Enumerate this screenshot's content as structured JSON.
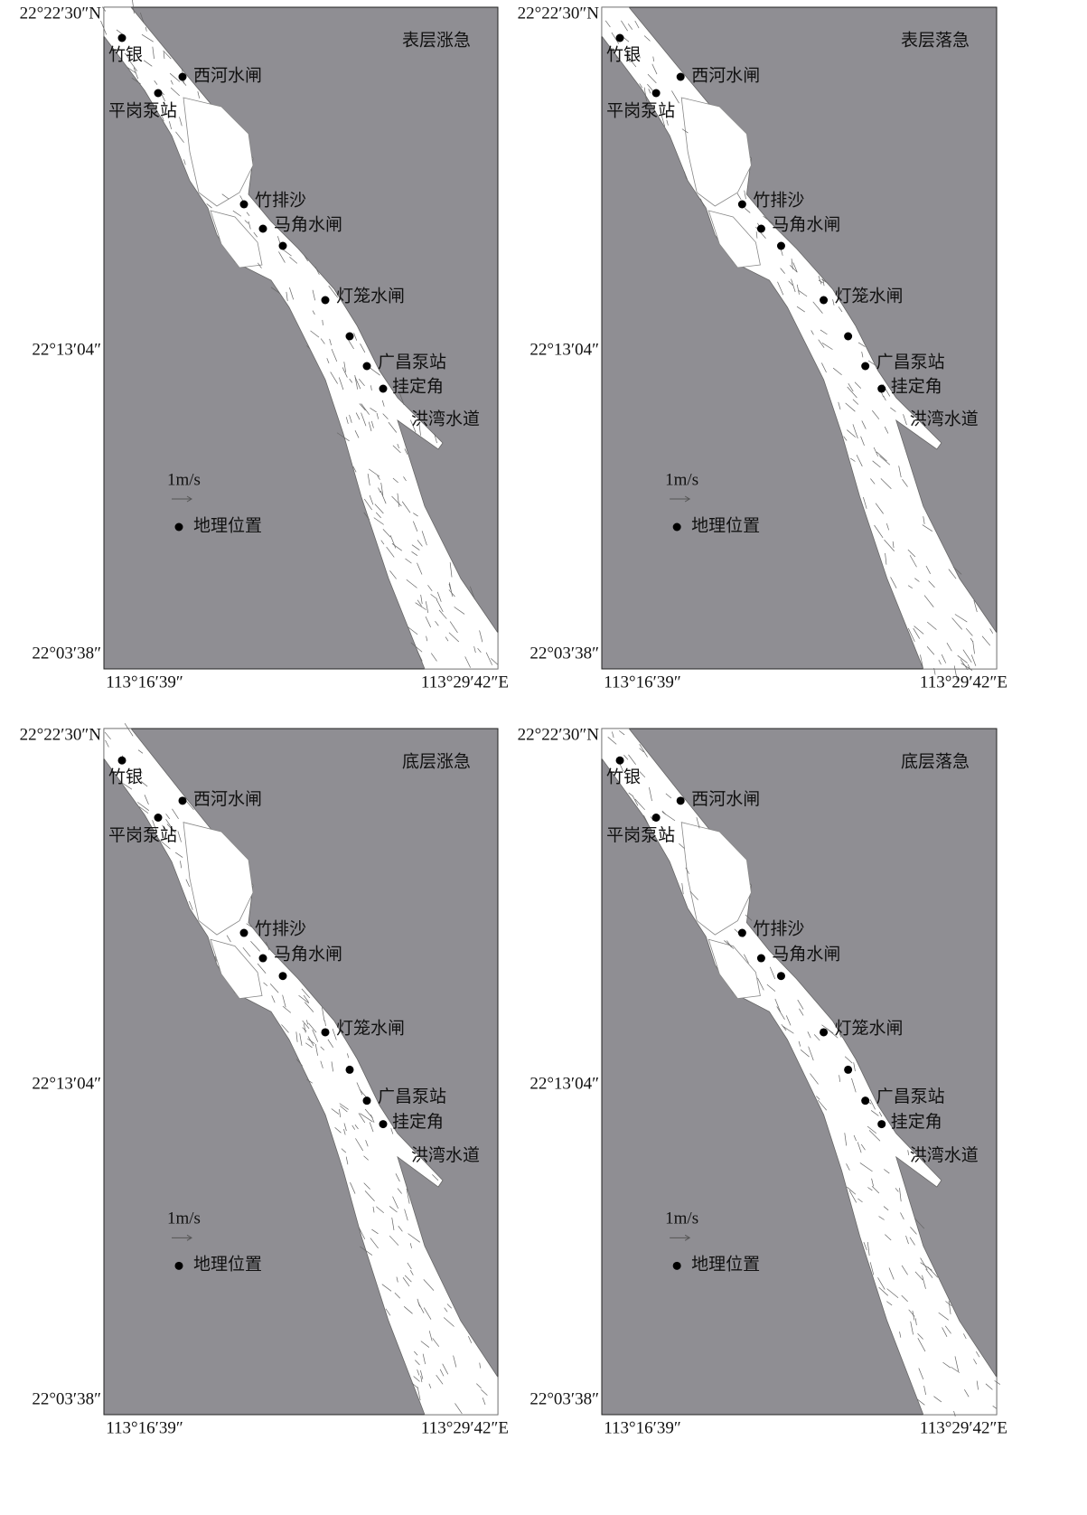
{
  "panels": [
    {
      "title": "表层涨急",
      "lat_labels": [
        "22°22′30″N",
        "22°13′04″",
        "22°03′38″"
      ],
      "lon_labels": [
        "113°16′39″",
        "113°29′42″E"
      ],
      "stations": [
        "竹银",
        "西河水闸",
        "平岗泵站",
        "竹排沙",
        "马角水闸",
        "灯笼水闸",
        "广昌泵站",
        "挂定角"
      ],
      "channel": "洪湾水道",
      "scale_label": "1m/s",
      "legend": "地理位置"
    },
    {
      "title": "表层落急",
      "lat_labels": [
        "22°22′30″N",
        "22°13′04″",
        "22°03′38″"
      ],
      "lon_labels": [
        "113°16′39″",
        "113°29′42″E"
      ],
      "stations": [
        "竹银",
        "西河水闸",
        "平岗泵站",
        "竹排沙",
        "马角水闸",
        "灯笼水闸",
        "广昌泵站",
        "挂定角"
      ],
      "channel": "洪湾水道",
      "scale_label": "1m/s",
      "legend": "地理位置"
    },
    {
      "title": "底层涨急",
      "lat_labels": [
        "22°22′30″N",
        "22°13′04″",
        "22°03′38″"
      ],
      "lon_labels": [
        "113°16′39″",
        "113°29′42″E"
      ],
      "stations": [
        "竹银",
        "西河水闸",
        "平岗泵站",
        "竹排沙",
        "马角水闸",
        "灯笼水闸",
        "广昌泵站",
        "挂定角"
      ],
      "channel": "洪湾水道",
      "scale_label": "1m/s",
      "legend": "地理位置"
    },
    {
      "title": "底层落急",
      "lat_labels": [
        "22°22′30″N",
        "22°13′04″",
        "22°03′38″"
      ],
      "lon_labels": [
        "113°16′39″",
        "113°29′42″E"
      ],
      "stations": [
        "竹银",
        "西河水闸",
        "平岗泵站",
        "竹排沙",
        "马角水闸",
        "灯笼水闸",
        "广昌泵站",
        "挂定角"
      ],
      "channel": "洪湾水道",
      "scale_label": "1m/s",
      "legend": "地理位置"
    }
  ]
}
